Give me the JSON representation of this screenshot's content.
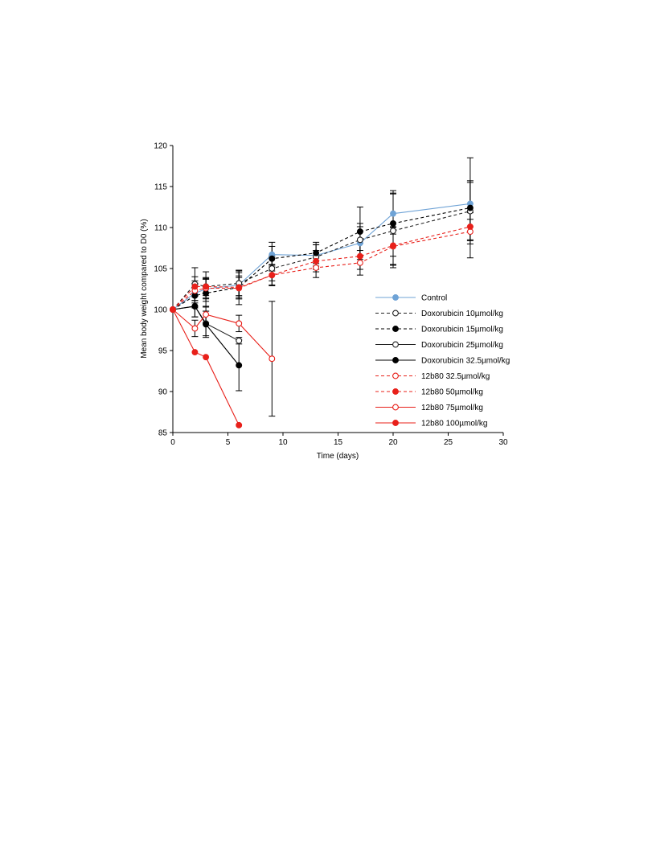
{
  "chart_data": {
    "type": "line",
    "title": "",
    "xlabel": "Time (days)",
    "ylabel": "Mean  body weight compared to D0 (%)",
    "xlim": [
      0,
      30
    ],
    "ylim": [
      85,
      120
    ],
    "xticks": [
      "0",
      "5",
      "10",
      "15",
      "20",
      "25",
      "30"
    ],
    "yticks": [
      "85",
      "90",
      "95",
      "100",
      "105",
      "110",
      "115",
      "120"
    ],
    "grid": false,
    "legend_position": "right",
    "series": [
      {
        "name": "Control",
        "color": "#6fa3d6",
        "dash": false,
        "filled": true,
        "x": [
          0,
          2,
          3,
          6,
          9,
          13,
          17,
          20,
          27
        ],
        "y": [
          100,
          102.0,
          102.5,
          103.0,
          106.7,
          106.6,
          108.1,
          111.7,
          112.9
        ],
        "err": [
          0,
          1.2,
          1.2,
          1.5,
          1.5,
          1.3,
          2.0,
          2.5,
          2.8
        ]
      },
      {
        "name": "Doxorubicin 10µmol/kg",
        "color": "#222222",
        "dash": true,
        "filled": false,
        "x": [
          0,
          2,
          3,
          6,
          9,
          13,
          17,
          20,
          27
        ],
        "y": [
          100,
          103.1,
          102.8,
          103.2,
          105.0,
          106.4,
          108.5,
          109.6,
          112.0
        ],
        "err": [
          0,
          2.0,
          1.8,
          1.5,
          1.5,
          1.5,
          2.0,
          4.5,
          3.5
        ]
      },
      {
        "name": "Doxorubicin 15µmol/kg",
        "color": "#000000",
        "dash": true,
        "filled": true,
        "x": [
          0,
          2,
          3,
          6,
          9,
          13,
          17,
          20,
          27
        ],
        "y": [
          100,
          101.7,
          102.0,
          102.7,
          106.2,
          106.9,
          109.5,
          110.5,
          112.4
        ],
        "err": [
          0,
          1.5,
          1.7,
          2.1,
          1.5,
          1.3,
          3.0,
          4.0,
          6.1
        ]
      },
      {
        "name": "Doxorubicin 25µmol/kg",
        "color": "#222222",
        "dash": false,
        "filled": false,
        "x": [
          0,
          2,
          3,
          6
        ],
        "y": [
          100,
          100.4,
          98.3,
          96.2
        ],
        "err": [
          0,
          1.3,
          1.5,
          0.4
        ]
      },
      {
        "name": "Doxorubicin 32.5µmol/kg",
        "color": "#000000",
        "dash": false,
        "filled": true,
        "x": [
          0,
          2,
          3,
          6
        ],
        "y": [
          100,
          100.4,
          98.2,
          93.2
        ],
        "err": [
          0,
          1.3,
          1.6,
          3.1
        ]
      },
      {
        "name": "12b80 32.5µmol/kg",
        "color": "#e8201a",
        "dash": true,
        "filled": false,
        "x": [
          0,
          2,
          3,
          6,
          9,
          13,
          17,
          20,
          27
        ],
        "y": [
          100,
          102.3,
          102.6,
          102.6,
          104.2,
          105.1,
          105.7,
          107.7,
          109.5
        ],
        "err": [
          0,
          1.2,
          1.2,
          1.3,
          1.2,
          1.2,
          1.5,
          2.3,
          1.5
        ]
      },
      {
        "name": "12b80 50µmol/kg",
        "color": "#e8201a",
        "dash": true,
        "filled": true,
        "x": [
          0,
          2,
          3,
          6,
          9,
          13,
          17,
          20,
          27
        ],
        "y": [
          100,
          102.8,
          102.8,
          102.7,
          104.2,
          105.9,
          106.5,
          107.8,
          110.1
        ],
        "err": [
          0,
          1.2,
          1.1,
          1.4,
          1.3,
          1.3,
          1.6,
          2.3,
          1.7
        ]
      },
      {
        "name": "12b80 75µmol/kg",
        "color": "#e8201a",
        "dash": false,
        "filled": false,
        "x": [
          0,
          2,
          3,
          6,
          9
        ],
        "y": [
          100,
          97.7,
          99.4,
          98.3,
          94.0
        ],
        "err": [
          0,
          1.0,
          1.0,
          1.0,
          7.0
        ]
      },
      {
        "name": "12b80 100µmol/kg",
        "color": "#e8201a",
        "dash": false,
        "filled": true,
        "x": [
          0,
          2,
          3,
          6
        ],
        "y": [
          100,
          94.8,
          94.2,
          85.9
        ],
        "err": [
          0,
          0,
          0,
          0
        ]
      }
    ]
  }
}
